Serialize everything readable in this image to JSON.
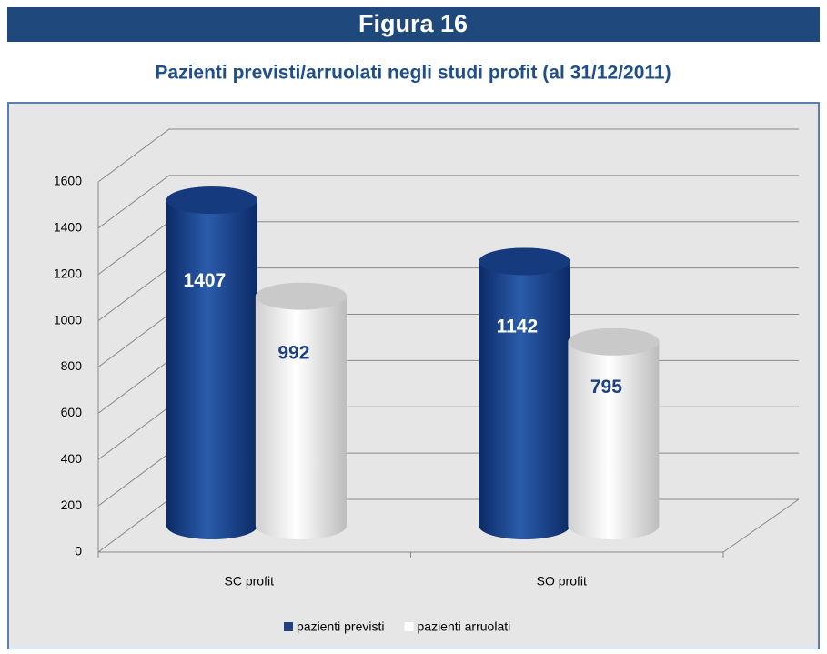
{
  "chart_data": {
    "type": "bar3d",
    "figure_label": "Figura 16",
    "title": "Pazienti previsti/arruolati negli studi profit (al 31/12/2011)",
    "categories": [
      "SC profit",
      "SO profit"
    ],
    "series": [
      {
        "name": "pazienti previsti",
        "color": "#1f3f7f",
        "values": [
          1407,
          1142
        ]
      },
      {
        "name": "pazienti arruolati",
        "color": "#ffffff",
        "values": [
          992,
          795
        ]
      }
    ],
    "ylim": [
      0,
      1600
    ],
    "yticks": [
      0,
      200,
      400,
      600,
      800,
      1000,
      1200,
      1400,
      1600
    ],
    "grid": true
  }
}
